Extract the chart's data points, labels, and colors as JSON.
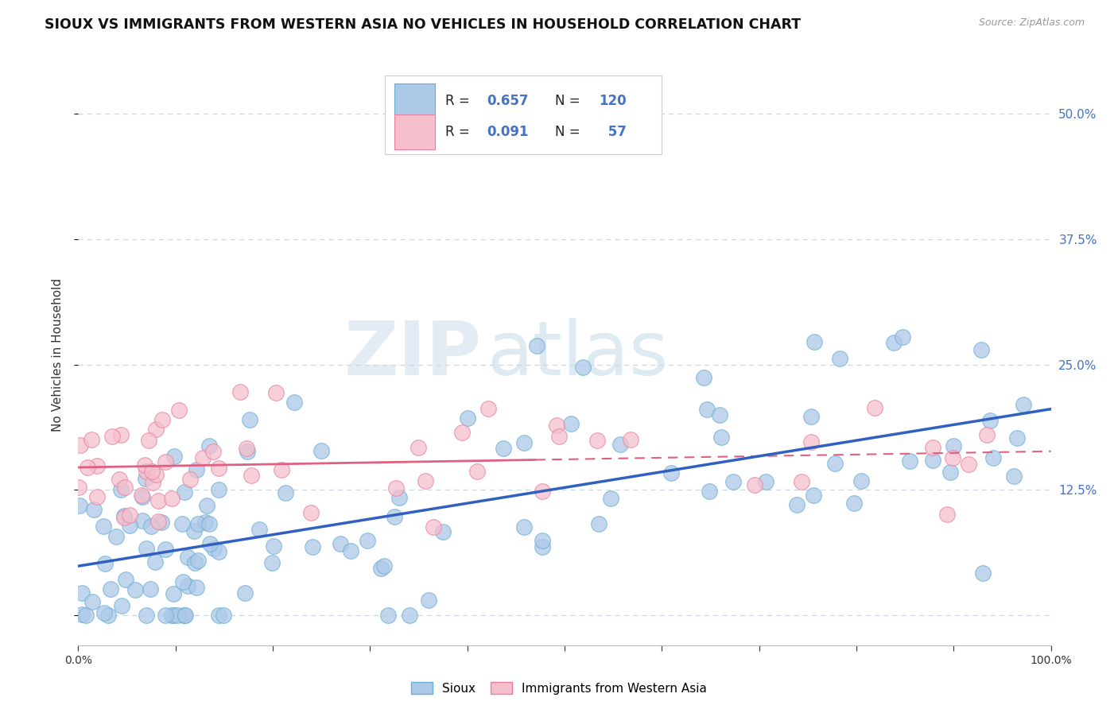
{
  "title": "SIOUX VS IMMIGRANTS FROM WESTERN ASIA NO VEHICLES IN HOUSEHOLD CORRELATION CHART",
  "source": "Source: ZipAtlas.com",
  "ylabel": "No Vehicles in Household",
  "xlim": [
    0.0,
    1.0
  ],
  "ylim": [
    -0.03,
    0.55
  ],
  "xticks": [
    0.0,
    0.1,
    0.2,
    0.3,
    0.4,
    0.5,
    0.6,
    0.7,
    0.8,
    0.9,
    1.0
  ],
  "yticks": [
    0.0,
    0.125,
    0.25,
    0.375,
    0.5
  ],
  "sioux_color": "#adc9e8",
  "sioux_edge_color": "#6aaed6",
  "immigrants_color": "#f5bfcc",
  "immigrants_edge_color": "#e87fa0",
  "trend_blue": "#3060c0",
  "trend_pink": "#e06080",
  "background_color": "#ffffff",
  "grid_color": "#c8d8e8",
  "watermark_zip": "ZIP",
  "watermark_atlas": "atlas",
  "legend_R_sioux": "0.657",
  "legend_N_sioux": "120",
  "legend_R_immigrants": "0.091",
  "legend_N_immigrants": "57",
  "seed": 12345
}
